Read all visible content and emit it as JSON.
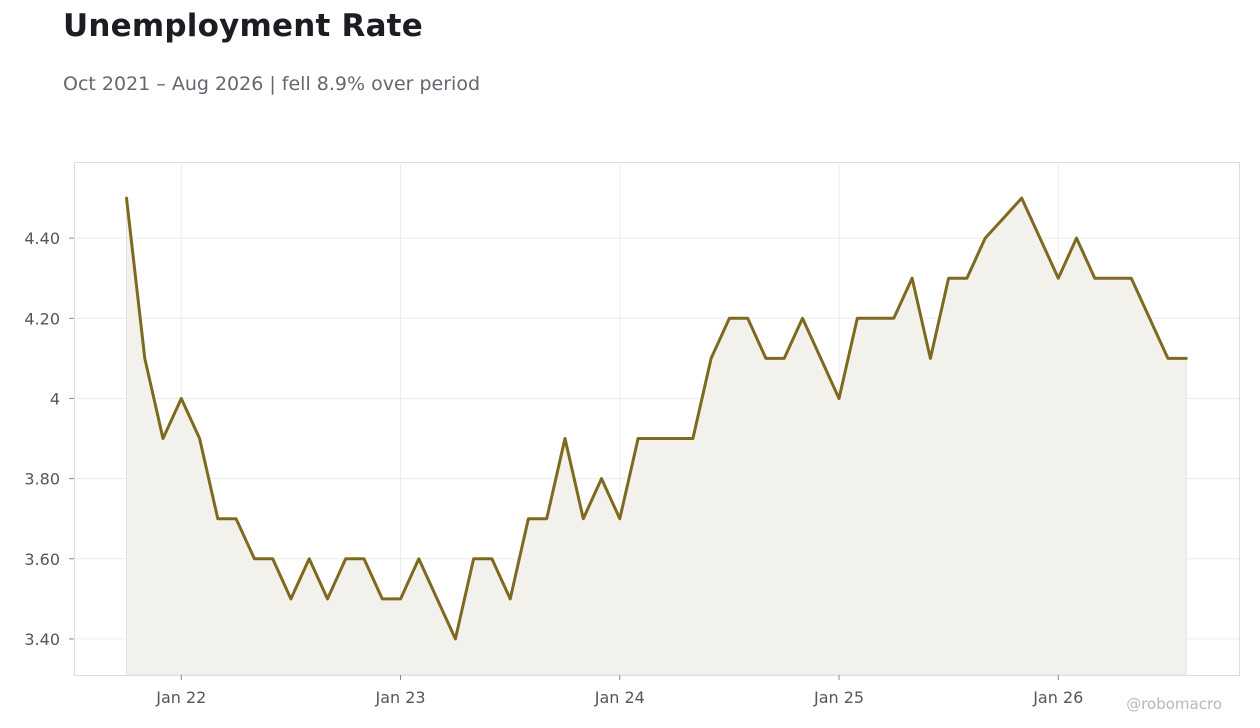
{
  "header": {
    "title": "Unemployment Rate",
    "subtitle": "Oct 2021 – Aug 2026 | fell 8.9% over period"
  },
  "credit": "@robomacro",
  "chart_data": {
    "type": "area",
    "title": "Unemployment Rate",
    "subtitle": "Oct 2021 – Aug 2026 | fell 8.9% over period",
    "xlabel": "",
    "ylabel": "",
    "ylim": [
      3.31,
      4.59
    ],
    "y_ticks": [
      3.4,
      3.6,
      3.8,
      4.0,
      4.2,
      4.4
    ],
    "y_tick_labels": [
      "3.40",
      "3.60",
      "3.80",
      "4",
      "4.20",
      "4.40"
    ],
    "x_ticks": [
      {
        "label": "Jan 22",
        "date": "2022-01"
      },
      {
        "label": "Jan 23",
        "date": "2023-01"
      },
      {
        "label": "Jan 24",
        "date": "2024-01"
      },
      {
        "label": "Jan 25",
        "date": "2025-01"
      },
      {
        "label": "Jan 26",
        "date": "2026-01"
      }
    ],
    "grid": true,
    "colors": {
      "line": "#7d6a20",
      "fill": "#f3f1ec",
      "grid": "#ececec",
      "frame": "#dddddd"
    },
    "series": [
      {
        "x": [
          "2021-10",
          "2021-11",
          "2021-12",
          "2022-01",
          "2022-02",
          "2022-03",
          "2022-04",
          "2022-05",
          "2022-06",
          "2022-07",
          "2022-08",
          "2022-09",
          "2022-10",
          "2022-11",
          "2022-12",
          "2023-01",
          "2023-02",
          "2023-03",
          "2023-04",
          "2023-05",
          "2023-06",
          "2023-07",
          "2023-08",
          "2023-09",
          "2023-10",
          "2023-11",
          "2023-12",
          "2024-01",
          "2024-02",
          "2024-03",
          "2024-04",
          "2024-05",
          "2024-06",
          "2024-07",
          "2024-08",
          "2024-09",
          "2024-10",
          "2024-11",
          "2024-12",
          "2025-01",
          "2025-02",
          "2025-03",
          "2025-04",
          "2025-05",
          "2025-06",
          "2025-07",
          "2025-08",
          "2025-09",
          "2025-10",
          "2025-11",
          "2025-12",
          "2026-01",
          "2026-02",
          "2026-03",
          "2026-04",
          "2026-05",
          "2026-06",
          "2026-07",
          "2026-08"
        ],
        "values": [
          4.5,
          4.1,
          3.9,
          4.0,
          3.9,
          3.7,
          3.7,
          3.6,
          3.6,
          3.5,
          3.6,
          3.5,
          3.6,
          3.6,
          3.5,
          3.5,
          3.6,
          3.5,
          3.4,
          3.6,
          3.6,
          3.5,
          3.7,
          3.7,
          3.9,
          3.7,
          3.8,
          3.7,
          3.9,
          3.9,
          3.9,
          3.9,
          4.1,
          4.2,
          4.2,
          4.1,
          4.1,
          4.2,
          4.1,
          4.0,
          4.2,
          4.2,
          4.2,
          4.3,
          4.1,
          4.3,
          4.3,
          4.4,
          4.45,
          4.5,
          4.4,
          4.3,
          4.4,
          4.3,
          4.3,
          4.3,
          4.2,
          4.1,
          4.1
        ]
      }
    ]
  }
}
